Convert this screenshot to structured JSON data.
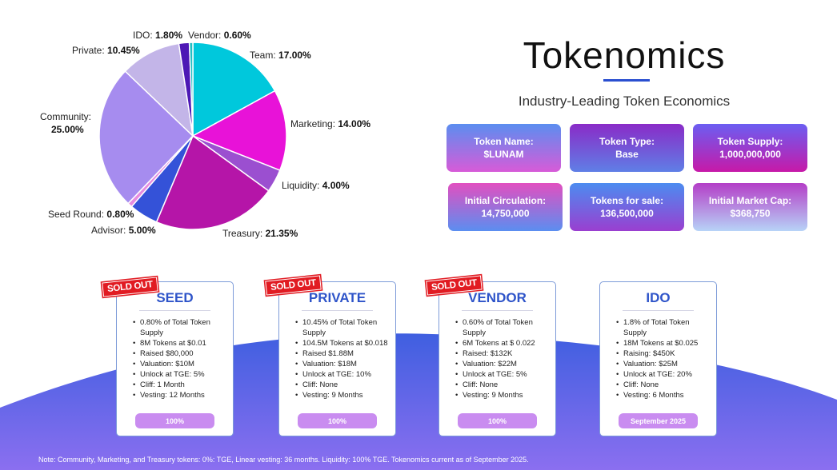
{
  "title": "Tokenomics",
  "subtitle": "Industry-Leading Token Economics",
  "chart_data": {
    "type": "pie",
    "slices": [
      {
        "label": "Team:",
        "value": 17.0,
        "value_text": "17.00%",
        "color": "#00c8dc"
      },
      {
        "label": "Marketing:",
        "value": 14.0,
        "value_text": "14.00%",
        "color": "#e812d8"
      },
      {
        "label": "Liquidity:",
        "value": 4.0,
        "value_text": "4.00%",
        "color": "#9b4fd0"
      },
      {
        "label": "Treasury:",
        "value": 21.35,
        "value_text": "21.35%",
        "color": "#b515a8"
      },
      {
        "label": "Advisor:",
        "value": 5.0,
        "value_text": "5.00%",
        "color": "#3452d8"
      },
      {
        "label": "Seed Round:",
        "value": 0.8,
        "value_text": "0.80%",
        "color": "#e68be0"
      },
      {
        "label": "Community:",
        "value": 25.0,
        "value_text": "25.00%",
        "color": "#a68cef"
      },
      {
        "label": "Private:",
        "value": 10.45,
        "value_text": "10.45%",
        "color": "#c3b5e8"
      },
      {
        "label": "IDO:",
        "value": 1.8,
        "value_text": "1.80%",
        "color": "#4d18b5"
      },
      {
        "label": "Vendor:",
        "value": 0.6,
        "value_text": "0.60%",
        "color": "#21bfc4"
      }
    ]
  },
  "info_boxes": [
    {
      "label": "Token Name:",
      "value": "$LUNAM"
    },
    {
      "label": "Token Type:",
      "value": "Base"
    },
    {
      "label": "Token Supply:",
      "value": "1,000,000,000"
    },
    {
      "label": "Initial Circulation:",
      "value": "14,750,000"
    },
    {
      "label": "Tokens for sale:",
      "value": "136,500,000"
    },
    {
      "label": "Initial Market Cap:",
      "value": "$368,750"
    }
  ],
  "sold_out_label": "SOLD OUT",
  "rounds": [
    {
      "title": "SEED",
      "items": [
        "0.80% of Total Token Supply",
        "8M Tokens at $0.01",
        "Raised $80,000",
        "Valuation: $10M",
        "Unlock at TGE: 5%",
        "Cliff: 1 Month",
        "Vesting: 12 Months"
      ],
      "status": "100%"
    },
    {
      "title": "PRIVATE",
      "items": [
        "10.45% of Total Token Supply",
        "104.5M Tokens at $0.018",
        "Raised  $1.88M",
        "Valuation: $18M",
        "Unlock at TGE: 10%",
        "Cliff: None",
        "Vesting: 9 Months"
      ],
      "status": "100%"
    },
    {
      "title": "VENDOR",
      "items": [
        "0.60% of Total Token Supply",
        "6M Tokens at $ 0.022",
        "Raised: $132K",
        "Valuation: $22M",
        "Unlock at TGE: 5%",
        "Cliff: None",
        "Vesting: 9 Months"
      ],
      "status": "100%"
    },
    {
      "title": "IDO",
      "items": [
        "1.8% of Total Token Supply",
        "18M Tokens at $0.025",
        "Raising: $450K",
        "Valuation: $25M",
        "Unlock at TGE: 20%",
        "Cliff: None",
        "Vesting: 6 Months"
      ],
      "status": "September 2025"
    }
  ],
  "note": "Note: Community, Marketing, and Treasury tokens: 0%: TGE, Linear vesting: 36 months. Liquidity: 100% TGE. Tokenomics current as of September 2025."
}
